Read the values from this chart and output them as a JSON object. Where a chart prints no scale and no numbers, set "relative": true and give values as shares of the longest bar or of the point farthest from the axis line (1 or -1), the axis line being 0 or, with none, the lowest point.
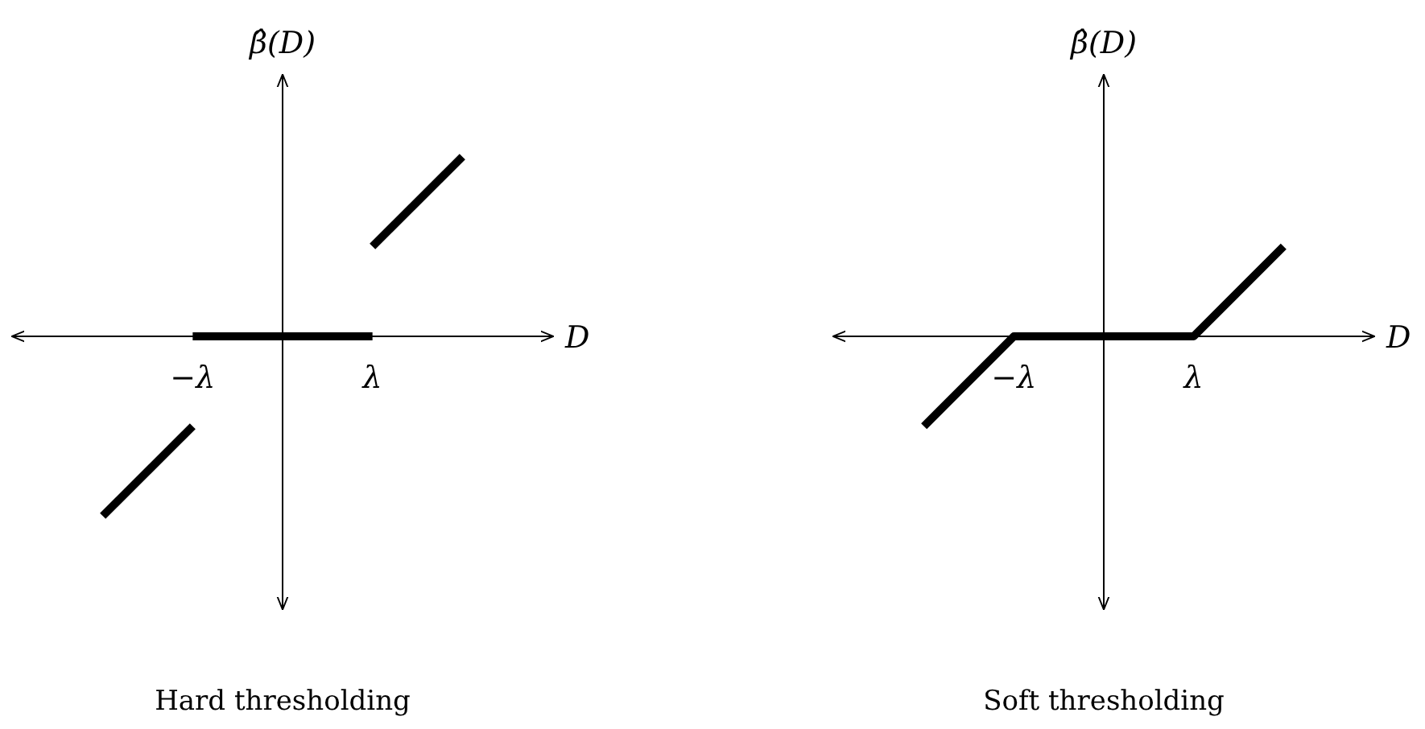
{
  "chart_data": [
    {
      "type": "line",
      "title": "Hard thresholding",
      "xlabel": "D",
      "ylabel": "β̂(D)",
      "relative": true,
      "categories": [
        null,
        "−λ",
        null,
        "λ",
        null
      ],
      "series": [
        {
          "color": "#000000",
          "values": [
            -1,
            -0.5,
            null,
            null,
            null
          ]
        },
        {
          "color": "#000000",
          "values": [
            null,
            0,
            0,
            0,
            null
          ]
        },
        {
          "color": "#000000",
          "values": [
            null,
            null,
            null,
            0.5,
            1
          ]
        }
      ]
    },
    {
      "type": "line",
      "title": "Soft thresholding",
      "xlabel": "D",
      "ylabel": "β̂(D)",
      "relative": true,
      "categories": [
        null,
        "−λ",
        null,
        "λ",
        null
      ],
      "series": [
        {
          "color": "#000000",
          "values": [
            -1,
            0,
            0,
            0,
            1
          ]
        }
      ]
    }
  ]
}
